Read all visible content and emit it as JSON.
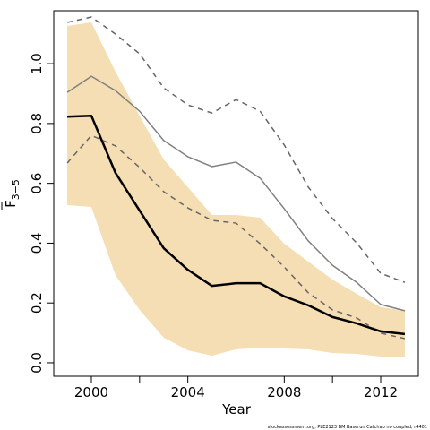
{
  "chart_data": {
    "type": "line",
    "xlabel": "Year",
    "ylabel": {
      "symbol": "F",
      "subscript": "3−5"
    },
    "footnote": "stockassessment.org, PLE2123 BM Baserun Catchab no coupled, r4401",
    "x": [
      1999,
      2000,
      2001,
      2002,
      2003,
      2004,
      2005,
      2006,
      2007,
      2008,
      2009,
      2010,
      2011,
      2012,
      2013
    ],
    "xlim": [
      1998.44,
      2013.56
    ],
    "xticks": [
      2000,
      2004,
      2008,
      2012
    ],
    "xminor_ticks": [
      2002,
      2006,
      2010
    ],
    "ylim": [
      -0.045,
      1.177
    ],
    "yticks": [
      {
        "value": 0,
        "label": "0.0"
      },
      0.2,
      0.4,
      0.6,
      0.8,
      {
        "value": 1,
        "label": "1.0"
      }
    ],
    "band": {
      "color": "#f5deb3",
      "upper": [
        1.126,
        1.138,
        0.973,
        0.826,
        0.68,
        0.587,
        0.494,
        0.494,
        0.485,
        0.398,
        0.338,
        0.278,
        0.231,
        0.186,
        0.174
      ],
      "lower": [
        0.527,
        0.521,
        0.293,
        0.177,
        0.084,
        0.042,
        0.024,
        0.045,
        0.051,
        0.048,
        0.045,
        0.033,
        0.03,
        0.021,
        0.018
      ]
    },
    "series": [
      {
        "color": "#666666",
        "dashed": true,
        "width": 1.5,
        "values": [
          1.138,
          1.156,
          1.099,
          1.033,
          0.919,
          0.862,
          0.835,
          0.88,
          0.841,
          0.728,
          0.587,
          0.482,
          0.401,
          0.299,
          0.269
        ]
      },
      {
        "color": "#666666",
        "dashed": true,
        "width": 1.5,
        "values": [
          0.668,
          0.76,
          0.725,
          0.653,
          0.572,
          0.518,
          0.476,
          0.467,
          0.398,
          0.32,
          0.234,
          0.177,
          0.15,
          0.099,
          0.081
        ]
      },
      {
        "color": "#808080",
        "dashed": false,
        "width": 1.5,
        "values": [
          0.904,
          0.958,
          0.91,
          0.841,
          0.743,
          0.689,
          0.656,
          0.671,
          0.617,
          0.515,
          0.407,
          0.326,
          0.269,
          0.195,
          0.174
        ]
      },
      {
        "color": "#000000",
        "dashed": false,
        "width": 2.5,
        "values": [
          0.823,
          0.826,
          0.635,
          0.509,
          0.383,
          0.311,
          0.257,
          0.266,
          0.266,
          0.222,
          0.192,
          0.153,
          0.132,
          0.105,
          0.096
        ]
      }
    ]
  }
}
